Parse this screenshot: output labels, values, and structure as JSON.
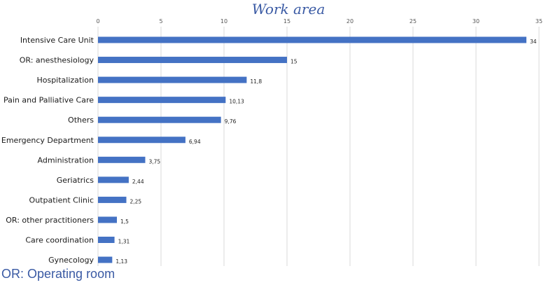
{
  "chart_data": {
    "type": "bar",
    "orientation": "horizontal",
    "title": "Work area",
    "categories": [
      "Intensive Care Unit",
      "OR: anesthesiology",
      "Hospitalization",
      "Pain and Palliative Care",
      "Others",
      "Emergency Department",
      "Administration",
      "Geriatrics",
      "Outpatient Clinic",
      "OR: other practitioners",
      "Care coordination",
      "Gynecology"
    ],
    "values": [
      34,
      15,
      11.8,
      10.13,
      9.76,
      6.94,
      3.75,
      2.44,
      2.25,
      1.5,
      1.31,
      1.13
    ],
    "value_labels": [
      "34",
      "15",
      "11,8",
      "10,13",
      "9,76",
      "6,94",
      "3,75",
      "2,44",
      "2,25",
      "1,5",
      "1,31",
      "1,13"
    ],
    "xlim": [
      0,
      35
    ],
    "xticks": [
      0,
      5,
      10,
      15,
      20,
      25,
      30,
      35
    ],
    "x_axis_position": "top",
    "grid": true,
    "bar_color": "#4472c4"
  },
  "footnote": {
    "abbr": "OR:",
    "text": " Operating room"
  }
}
